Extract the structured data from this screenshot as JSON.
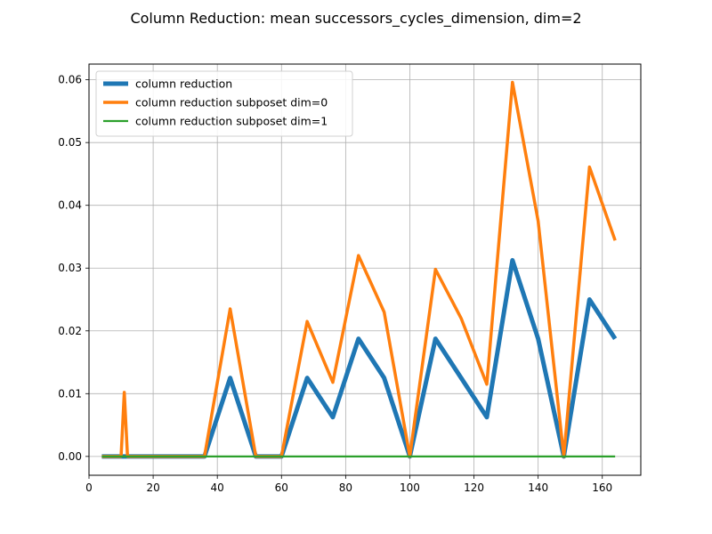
{
  "chart_data": {
    "type": "line",
    "title": "Column Reduction: mean successors_cycles_dimension, dim=2",
    "xlabel": "",
    "ylabel": "",
    "xlim": [
      0,
      172
    ],
    "ylim": [
      -0.003,
      0.0625
    ],
    "xticks": [
      0,
      20,
      40,
      60,
      80,
      100,
      120,
      140,
      160
    ],
    "yticks": [
      0.0,
      0.01,
      0.02,
      0.03,
      0.04,
      0.05,
      0.06
    ],
    "xtick_labels": [
      "0",
      "20",
      "40",
      "60",
      "80",
      "100",
      "120",
      "140",
      "160"
    ],
    "ytick_labels": [
      "0.00",
      "0.01",
      "0.02",
      "0.03",
      "0.04",
      "0.05",
      "0.06"
    ],
    "grid": true,
    "legend_position": "top-left",
    "x": [
      4,
      10,
      11,
      12,
      20,
      28,
      36,
      44,
      52,
      60,
      68,
      76,
      84,
      92,
      100,
      108,
      116,
      124,
      132,
      140,
      148,
      156,
      164
    ],
    "series": [
      {
        "name": "column reduction",
        "color": "#1f77b4",
        "values": [
          0,
          0,
          0,
          0,
          0,
          0,
          0,
          0.0125,
          0,
          0,
          0.0125,
          0.00625,
          0.01875,
          0.0125,
          0,
          0.01875,
          0.0125,
          0.00625,
          0.03125,
          0.01875,
          0,
          0.025,
          0.01875
        ]
      },
      {
        "name": "column reduction subposet dim=0",
        "color": "#ff7f0e",
        "values": [
          0,
          0,
          0.0102,
          0,
          0,
          0,
          0,
          0.0235,
          0,
          0,
          0.0215,
          0.0118,
          0.032,
          0.023,
          0,
          0.0298,
          0.022,
          0.0115,
          0.0596,
          0.0375,
          0,
          0.0461,
          0.0344
        ]
      },
      {
        "name": "column reduction subposet dim=1",
        "color": "#2ca02c",
        "values": [
          0,
          0,
          0,
          0,
          0,
          0,
          0,
          0,
          0,
          0,
          0,
          0,
          0,
          0,
          0,
          0,
          0,
          0,
          0,
          0,
          0,
          0,
          0
        ]
      }
    ]
  }
}
